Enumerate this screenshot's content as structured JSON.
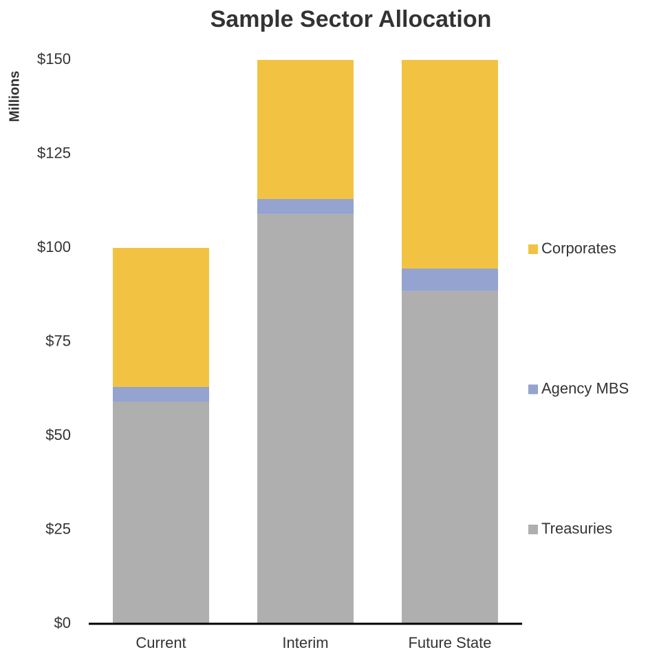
{
  "chart_data": {
    "type": "stacked_bar",
    "title": "Sample Sector Allocation",
    "y_label": "Millions",
    "categories": [
      "Current",
      "Interim",
      "Future State"
    ],
    "series": [
      {
        "name": "Treasuries",
        "color": "#afafaf",
        "values": [
          59,
          109,
          88.5
        ]
      },
      {
        "name": "Agency MBS",
        "color": "#94a3cf",
        "values": [
          4,
          4,
          6
        ]
      },
      {
        "name": "Corporates",
        "color": "#f2c343",
        "values": [
          37,
          37,
          55.5
        ]
      }
    ],
    "ylim": [
      0,
      150
    ],
    "yticks": [
      {
        "value": 0,
        "label": "$0"
      },
      {
        "value": 25,
        "label": "$25"
      },
      {
        "value": 50,
        "label": "$50"
      },
      {
        "value": 75,
        "label": "$75"
      },
      {
        "value": 100,
        "label": "$100"
      },
      {
        "value": 125,
        "label": "$125"
      },
      {
        "value": 150,
        "label": "$150"
      }
    ],
    "legend": "right"
  }
}
